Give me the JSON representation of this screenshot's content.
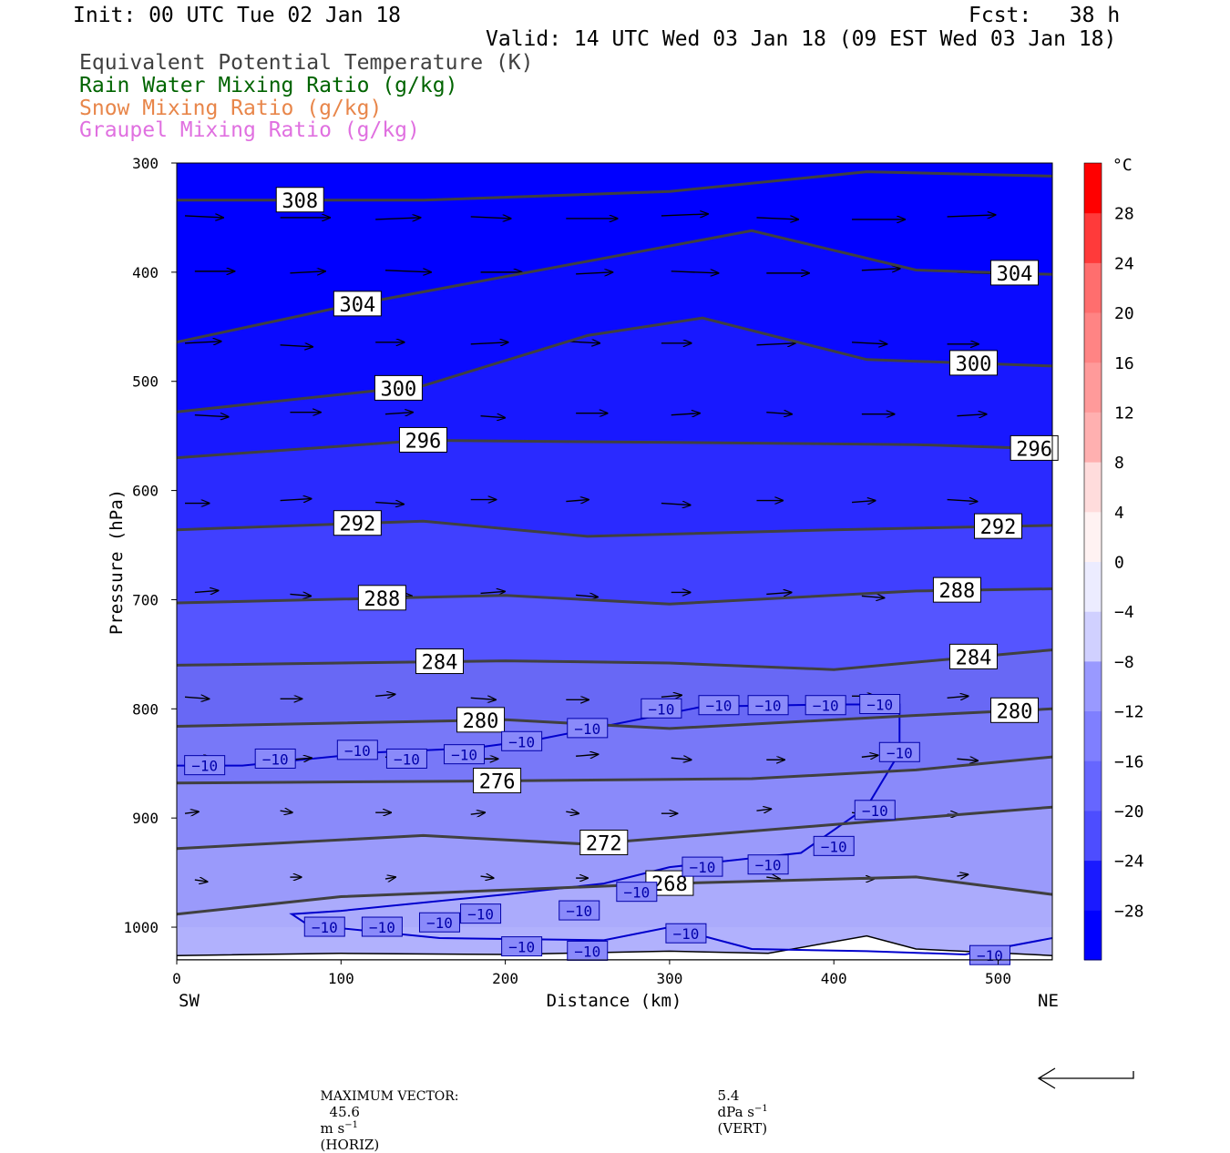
{
  "header": {
    "init": "Init: 00 UTC Tue 02 Jan 18",
    "fcst": "Fcst:   38 h",
    "valid": "Valid: 14 UTC Wed 03 Jan 18 (09 EST Wed 03 Jan 18)",
    "legend": [
      {
        "text": "Equivalent Potential Temperature (K)",
        "color": "#404040"
      },
      {
        "text": "Rain Water Mixing Ratio (g/kg)",
        "color": "#006400"
      },
      {
        "text": "Snow Mixing Ratio (g/kg)",
        "color": "#e8864a"
      },
      {
        "text": "Graupel Mixing Ratio (g/kg)",
        "color": "#e070e0"
      }
    ]
  },
  "chart_data": {
    "type": "cross-section",
    "xlabel": "Distance (km)",
    "ylabel": "Pressure (hPa)",
    "xlim": [
      0,
      533
    ],
    "ylim": [
      1030,
      300
    ],
    "x_ticks": [
      0,
      100,
      200,
      300,
      400,
      500
    ],
    "y_ticks": [
      300,
      400,
      500,
      600,
      700,
      800,
      900,
      1000
    ],
    "endpoints": {
      "left": "SW",
      "right": "NE"
    },
    "temperature_shading_levels_C": [
      -32,
      -28,
      -24,
      -20,
      -16,
      -12,
      -8,
      -4,
      0,
      4,
      8,
      12,
      16,
      20,
      24,
      28,
      32
    ],
    "colorbar_unit": "°C",
    "colorbar_ticks": [
      "28",
      "24",
      "20",
      "16",
      "12",
      "8",
      "4",
      "0",
      "−4",
      "−8",
      "−12",
      "−16",
      "−20",
      "−24",
      "−28"
    ],
    "theta_e_contours": [
      {
        "value": 308,
        "label": "308",
        "points": [
          [
            0,
            334
          ],
          [
            150,
            334
          ],
          [
            300,
            326
          ],
          [
            420,
            308
          ],
          [
            533,
            312
          ]
        ]
      },
      {
        "value": 304,
        "label": "304",
        "points": [
          [
            0,
            464
          ],
          [
            100,
            432
          ],
          [
            200,
            404
          ],
          [
            350,
            362
          ],
          [
            450,
            398
          ],
          [
            533,
            402
          ]
        ]
      },
      {
        "value": 300,
        "label": "300",
        "points": [
          [
            0,
            528
          ],
          [
            150,
            504
          ],
          [
            250,
            458
          ],
          [
            320,
            442
          ],
          [
            420,
            480
          ],
          [
            533,
            486
          ]
        ]
      },
      {
        "value": 296,
        "label": "296",
        "points": [
          [
            0,
            570
          ],
          [
            150,
            554
          ],
          [
            300,
            556
          ],
          [
            450,
            558
          ],
          [
            533,
            562
          ]
        ]
      },
      {
        "value": 292,
        "label": "292",
        "points": [
          [
            0,
            636
          ],
          [
            150,
            628
          ],
          [
            250,
            642
          ],
          [
            400,
            636
          ],
          [
            533,
            632
          ]
        ]
      },
      {
        "value": 288,
        "label": "288",
        "points": [
          [
            0,
            703
          ],
          [
            200,
            696
          ],
          [
            300,
            704
          ],
          [
            450,
            692
          ],
          [
            533,
            690
          ]
        ]
      },
      {
        "value": 284,
        "label": "284",
        "points": [
          [
            0,
            760
          ],
          [
            200,
            756
          ],
          [
            300,
            758
          ],
          [
            400,
            764
          ],
          [
            533,
            746
          ]
        ]
      },
      {
        "value": 280,
        "label": "280",
        "points": [
          [
            0,
            816
          ],
          [
            200,
            810
          ],
          [
            300,
            818
          ],
          [
            450,
            806
          ],
          [
            533,
            800
          ]
        ]
      },
      {
        "value": 276,
        "label": "276",
        "points": [
          [
            0,
            868
          ],
          [
            200,
            866
          ],
          [
            350,
            864
          ],
          [
            450,
            856
          ],
          [
            533,
            844
          ]
        ]
      },
      {
        "value": 272,
        "label": "272",
        "points": [
          [
            0,
            928
          ],
          [
            150,
            916
          ],
          [
            250,
            924
          ],
          [
            400,
            906
          ],
          [
            533,
            890
          ]
        ]
      },
      {
        "value": 268,
        "label": "268",
        "points": [
          [
            0,
            988
          ],
          [
            100,
            972
          ],
          [
            300,
            960
          ],
          [
            450,
            954
          ],
          [
            533,
            970
          ]
        ]
      }
    ],
    "minus10_isotherm_label": "−10",
    "wind_vectors": "horizontal circulation vectors, mostly westerly",
    "max_vector_note": {
      "label": "MAXIMUM VECTOR:",
      "horiz_value": "45.6",
      "horiz_unit": "m s",
      "horiz_tag": "(HORIZ)",
      "vert_value": "5.4",
      "vert_unit": "dPa s",
      "vert_tag": "(VERT)",
      "exponent": "−1"
    }
  }
}
